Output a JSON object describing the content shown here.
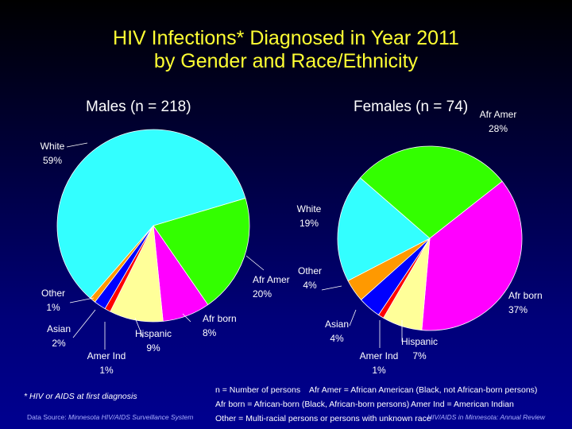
{
  "title_line1": "HIV Infections* Diagnosed in Year 2011",
  "title_line2": "by Gender and Race/Ethnicity",
  "chart_data": [
    {
      "type": "pie",
      "title": "Males (n = 218)",
      "categories": [
        "Afr Amer",
        "Afr born",
        "Hispanic",
        "Amer Ind",
        "Asian",
        "Other",
        "White"
      ],
      "values": [
        20,
        8,
        9,
        1,
        2,
        1,
        59
      ],
      "labels": [
        "20%",
        "8%",
        "9%",
        "1%",
        "2%",
        "1%",
        "59%"
      ],
      "colors": [
        "#33ff00",
        "#ff00ff",
        "#ffff99",
        "#ff0000",
        "#0000ff",
        "#ff9900",
        "#33ffff"
      ]
    },
    {
      "type": "pie",
      "title": "Females (n = 74)",
      "categories": [
        "Afr Amer",
        "Afr born",
        "Hispanic",
        "Amer Ind",
        "Asian",
        "Other",
        "White"
      ],
      "values": [
        28,
        37,
        7,
        1,
        4,
        4,
        19
      ],
      "labels": [
        "28%",
        "37%",
        "7%",
        "1%",
        "4%",
        "4%",
        "19%"
      ],
      "colors": [
        "#33ff00",
        "#ff00ff",
        "#ffff99",
        "#ff0000",
        "#0000ff",
        "#ff9900",
        "#33ffff"
      ]
    }
  ],
  "footnote": "* HIV or AIDS at first diagnosis",
  "source_prefix": "Data Source: ",
  "source_name": "Minnesota HIV/AIDS Surveillance System",
  "legend_notes": {
    "n": "n = Number of persons",
    "afr_amer": "Afr Amer = African American (Black, not African-born persons)",
    "afr_born": "Afr born = African-born (Black, African-born persons)",
    "amer_ind": "Amer Ind = American Indian",
    "other": "Other = Multi-racial persons or persons with unknown race"
  },
  "report": "HIV/AIDS in Minnesota: Annual Review"
}
